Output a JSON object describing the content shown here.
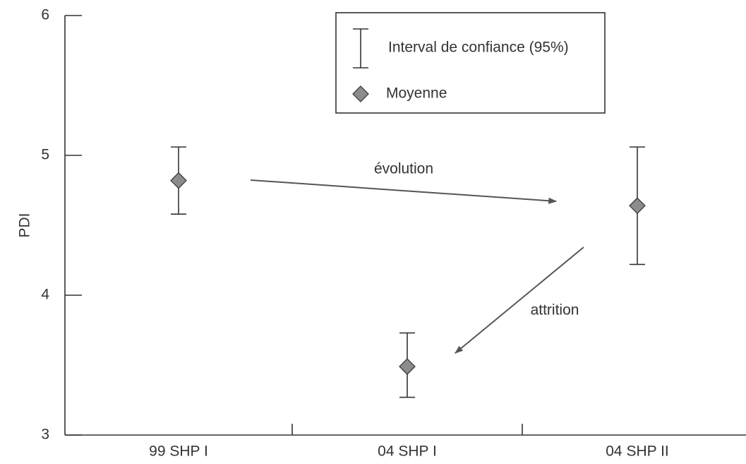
{
  "chart_data": {
    "type": "errorbar",
    "y_label": "PDI",
    "categories": [
      "99 SHP I",
      "04 SHP I",
      "04 SHP II"
    ],
    "series": [
      {
        "name": "Moyenne",
        "color": "#8c8c8c",
        "values": [
          4.82,
          3.49,
          4.64
        ],
        "ci_name": "Interval de confiance (95%)",
        "ci_low": [
          4.58,
          3.27,
          4.22
        ],
        "ci_high": [
          5.06,
          3.73,
          5.06
        ]
      }
    ],
    "ylim": [
      3,
      6
    ],
    "yticks": [
      3,
      4,
      5,
      6
    ],
    "annotations": [
      "évolution",
      "attrition"
    ],
    "grid": false
  }
}
